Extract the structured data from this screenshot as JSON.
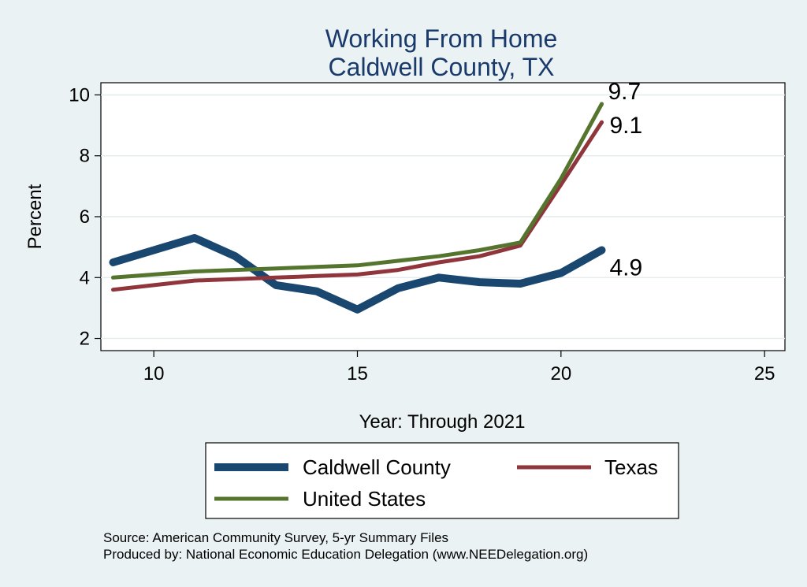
{
  "chart_data": {
    "type": "line",
    "title_lines": [
      "Working From Home",
      "Caldwell County, TX"
    ],
    "xlabel": "Year: Through 2021",
    "ylabel": "Percent",
    "xlim": [
      8.7,
      25.5
    ],
    "ylim": [
      1.6,
      10.4
    ],
    "x_ticks": [
      10,
      15,
      20,
      25
    ],
    "y_ticks": [
      2,
      4,
      6,
      8,
      10
    ],
    "grid": true,
    "legend_position": "bottom",
    "series": [
      {
        "name": "Caldwell County",
        "color": "#1a476f",
        "x": [
          9,
          10,
          11,
          12,
          13,
          14,
          15,
          16,
          17,
          18,
          19,
          20,
          21
        ],
        "y": [
          4.5,
          4.9,
          5.3,
          4.7,
          3.75,
          3.55,
          2.95,
          3.65,
          4.0,
          3.85,
          3.8,
          4.15,
          4.9
        ],
        "end_label": "4.9"
      },
      {
        "name": "Texas",
        "color": "#90353b",
        "x": [
          9,
          10,
          11,
          12,
          13,
          14,
          15,
          16,
          17,
          18,
          19,
          20,
          21
        ],
        "y": [
          3.6,
          3.75,
          3.9,
          3.95,
          4.0,
          4.05,
          4.1,
          4.25,
          4.5,
          4.7,
          5.05,
          7.05,
          9.1
        ],
        "end_label": "9.1"
      },
      {
        "name": "United States",
        "color": "#55752f",
        "x": [
          9,
          10,
          11,
          12,
          13,
          14,
          15,
          16,
          17,
          18,
          19,
          20,
          21
        ],
        "y": [
          4.0,
          4.1,
          4.2,
          4.25,
          4.3,
          4.35,
          4.4,
          4.55,
          4.7,
          4.9,
          5.15,
          7.25,
          9.7
        ],
        "end_label": "9.7"
      }
    ]
  },
  "source": {
    "line1": "Source: American Community Survey, 5-yr Summary Files",
    "line2": "Produced by: National Economic Education Delegation (www.NEEDelegation.org)"
  }
}
